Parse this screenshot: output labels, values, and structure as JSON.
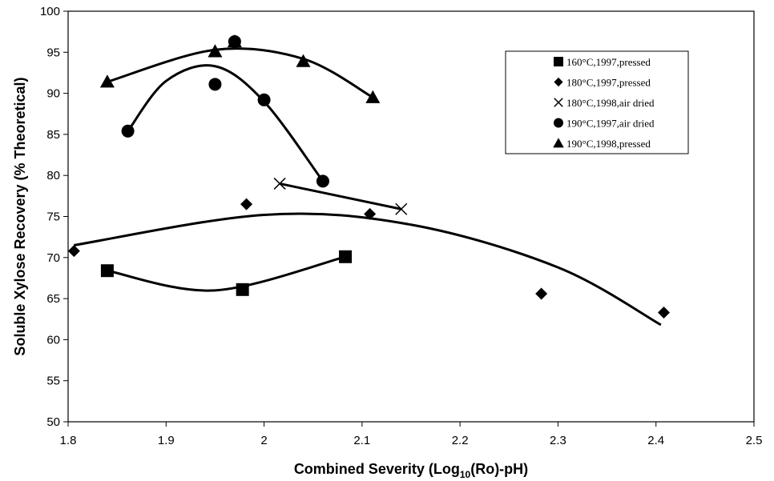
{
  "chart_data": {
    "type": "scatter",
    "xlabel_main": "Combined Severity (Log",
    "xlabel_sub": "10",
    "xlabel_tail": "(Ro)-pH)",
    "ylabel": "Soluble Xylose Recovery (% Theoretical)",
    "xlim": [
      1.8,
      2.5
    ],
    "ylim": [
      50,
      100
    ],
    "xticks": [
      "1.8",
      "1.9",
      "2",
      "2.1",
      "2.2",
      "2.3",
      "2.4",
      "2.5"
    ],
    "yticks": [
      "50",
      "55",
      "60",
      "65",
      "70",
      "75",
      "80",
      "85",
      "90",
      "95",
      "100"
    ],
    "grid": false,
    "legend_position": "top-right",
    "series": [
      {
        "name": "160°C,1997,pressed",
        "marker": "square",
        "points": [
          [
            1.84,
            68.4
          ],
          [
            1.978,
            66.1
          ],
          [
            2.083,
            70.1
          ]
        ],
        "trend": [
          [
            1.84,
            68.4
          ],
          [
            1.95,
            66.0
          ],
          [
            2.083,
            70.1
          ]
        ]
      },
      {
        "name": "180°C,1997,pressed",
        "marker": "diamond",
        "points": [
          [
            1.806,
            70.8
          ],
          [
            1.982,
            76.5
          ],
          [
            2.108,
            75.3
          ],
          [
            2.283,
            65.6
          ],
          [
            2.408,
            63.3
          ]
        ],
        "trend": [
          [
            1.806,
            71.5
          ],
          [
            2.0,
            75.2
          ],
          [
            2.15,
            74.0
          ],
          [
            2.3,
            68.8
          ],
          [
            2.405,
            61.8
          ]
        ]
      },
      {
        "name": "180°C,1998,air dried",
        "marker": "x",
        "points": [
          [
            2.016,
            79.0
          ],
          [
            2.14,
            75.9
          ]
        ],
        "trend": [
          [
            2.016,
            79.0
          ],
          [
            2.14,
            75.9
          ]
        ]
      },
      {
        "name": "190°C,1997,air dried",
        "marker": "circle",
        "points": [
          [
            1.861,
            85.4
          ],
          [
            1.95,
            91.1
          ],
          [
            1.97,
            96.3
          ],
          [
            2.0,
            89.2
          ],
          [
            2.06,
            79.3
          ]
        ],
        "trend": [
          [
            1.861,
            85.4
          ],
          [
            1.9,
            91.5
          ],
          [
            1.95,
            93.3
          ],
          [
            2.0,
            89.0
          ],
          [
            2.06,
            79.3
          ]
        ]
      },
      {
        "name": "190°C,1998,pressed",
        "marker": "triangle",
        "points": [
          [
            1.84,
            91.4
          ],
          [
            1.95,
            95.1
          ],
          [
            1.97,
            96.3
          ],
          [
            2.04,
            93.9
          ],
          [
            2.111,
            89.5
          ]
        ],
        "trend": [
          [
            1.84,
            91.4
          ],
          [
            1.95,
            95.3
          ],
          [
            2.04,
            94.2
          ],
          [
            2.111,
            89.5
          ]
        ]
      }
    ]
  }
}
